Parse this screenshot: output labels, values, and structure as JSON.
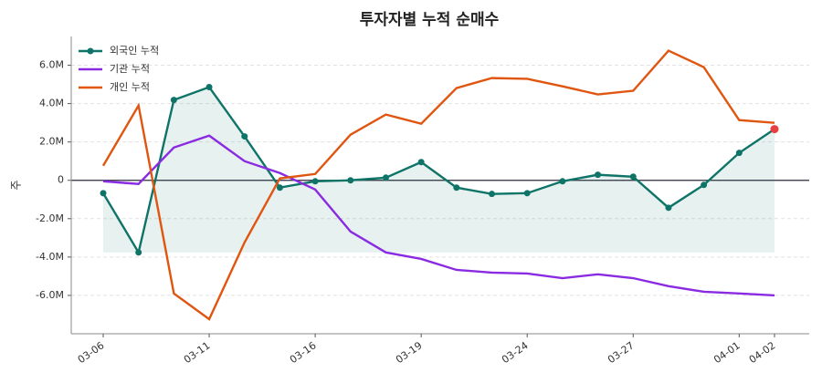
{
  "chart_data": {
    "type": "line",
    "title": "투자자별 누적 순매수",
    "y_label": "주",
    "categories": [
      "03-06",
      null,
      null,
      "03-11",
      null,
      null,
      "03-16",
      null,
      null,
      "03-19",
      null,
      null,
      "03-24",
      null,
      null,
      "03-27",
      null,
      null,
      "04-01",
      "04-02"
    ],
    "series": [
      {
        "name": "외국인 누적",
        "color": "#0f7468",
        "markers": true,
        "fill": true,
        "values": [
          -670000,
          -3760000,
          4190000,
          4860000,
          2290000,
          -380000,
          -50000,
          0,
          140000,
          950000,
          -380000,
          -710000,
          -670000,
          -50000,
          290000,
          190000,
          -1430000,
          -240000,
          1430000,
          2670000
        ]
      },
      {
        "name": "기관 누적",
        "color": "#8a2be2",
        "values": [
          -50000,
          -190000,
          1710000,
          2330000,
          1000000,
          380000,
          -480000,
          -2670000,
          -3760000,
          -4100000,
          -4670000,
          -4810000,
          -4860000,
          -5100000,
          -4900000,
          -5100000,
          -5520000,
          -5810000,
          -5900000,
          -6000000
        ]
      },
      {
        "name": "개인 누적",
        "color": "#e0550f",
        "values": [
          760000,
          3900000,
          -5900000,
          -7240000,
          -3240000,
          100000,
          330000,
          2380000,
          3430000,
          2950000,
          4810000,
          5330000,
          5290000,
          4900000,
          4480000,
          4670000,
          6760000,
          5900000,
          3140000,
          3000000
        ]
      }
    ],
    "highlight_color": "#e84040",
    "ylim": [
      -8000000,
      7500000
    ],
    "yticks": [
      {
        "value": -6000000,
        "label": "-6.0M"
      },
      {
        "value": -4000000,
        "label": "-4.0M"
      },
      {
        "value": -2000000,
        "label": "-2.0M"
      },
      0,
      {
        "value": 2000000,
        "label": "2.0M"
      },
      {
        "value": 4000000,
        "label": "4.0M"
      },
      {
        "value": 6000000,
        "label": "6.0M"
      }
    ],
    "grid": true,
    "legend": "upper-left"
  }
}
